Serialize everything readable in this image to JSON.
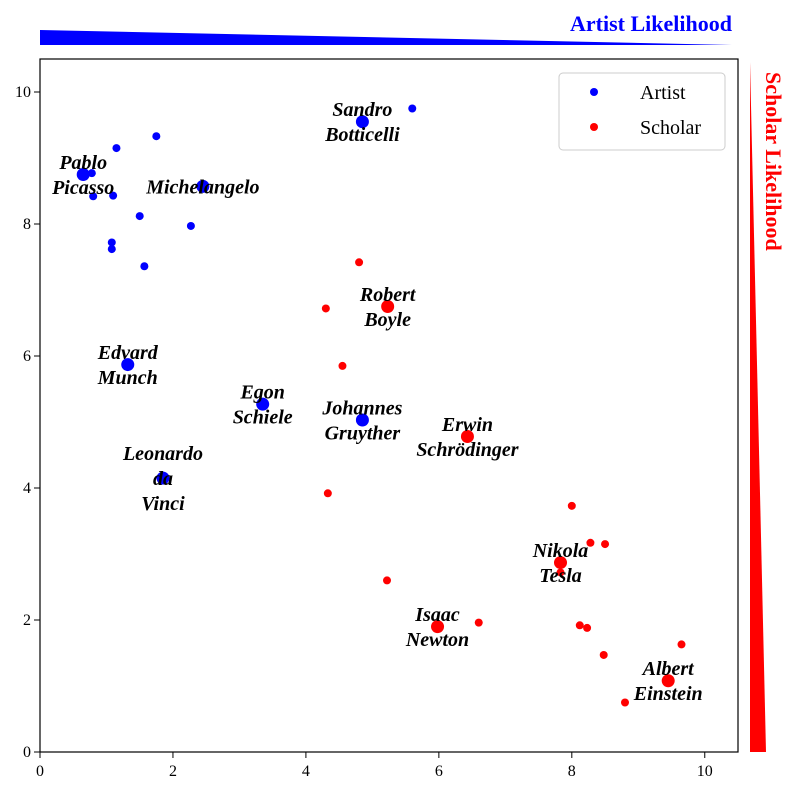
{
  "chart_data": {
    "type": "scatter",
    "xlim": [
      0,
      10.5
    ],
    "ylim": [
      0,
      10.5
    ],
    "x_ticks": [
      "0",
      "2",
      "4",
      "6",
      "8",
      "10"
    ],
    "y_ticks": [
      "0",
      "2",
      "4",
      "6",
      "8",
      "10"
    ],
    "grid": false,
    "legend_position": "top-right",
    "artist_bar_title": "Artist Likelihood",
    "scholar_bar_title": "Scholar Likelihood",
    "artist_color": "#0000ff",
    "scholar_color": "#ff0000",
    "series": [
      {
        "name": "Artist",
        "color": "#0000ff",
        "points": [
          {
            "x": 4.85,
            "y": 9.55,
            "label": "Sandro\nBotticelli",
            "major": true
          },
          {
            "x": 5.6,
            "y": 9.75
          },
          {
            "x": 0.65,
            "y": 8.75,
            "label": "Pablo\nPicasso",
            "major": true
          },
          {
            "x": 0.78,
            "y": 8.77
          },
          {
            "x": 1.15,
            "y": 9.15
          },
          {
            "x": 1.75,
            "y": 9.33
          },
          {
            "x": 0.8,
            "y": 8.42
          },
          {
            "x": 1.1,
            "y": 8.43
          },
          {
            "x": 2.45,
            "y": 8.57,
            "label": "Michelangelo",
            "major": true
          },
          {
            "x": 1.5,
            "y": 8.12
          },
          {
            "x": 2.27,
            "y": 7.97
          },
          {
            "x": 1.08,
            "y": 7.72
          },
          {
            "x": 1.08,
            "y": 7.62
          },
          {
            "x": 1.57,
            "y": 7.36
          },
          {
            "x": 1.32,
            "y": 5.87,
            "label": "Edvard\nMunch",
            "major": true
          },
          {
            "x": 3.35,
            "y": 5.27,
            "label": "Egon\nSchiele",
            "major": true
          },
          {
            "x": 4.85,
            "y": 5.03,
            "label": "Johannes\nGruyther",
            "major": true
          },
          {
            "x": 1.85,
            "y": 4.15,
            "label": "Leonardo\nda\nVinci",
            "major": true
          }
        ]
      },
      {
        "name": "Scholar",
        "color": "#ff0000",
        "points": [
          {
            "x": 4.8,
            "y": 7.42
          },
          {
            "x": 4.3,
            "y": 6.72
          },
          {
            "x": 5.23,
            "y": 6.75,
            "label": "Robert\nBoyle",
            "major": true
          },
          {
            "x": 4.55,
            "y": 5.85
          },
          {
            "x": 6.43,
            "y": 4.78,
            "label": "Erwin\nSchrödinger",
            "major": true
          },
          {
            "x": 4.33,
            "y": 3.92
          },
          {
            "x": 8.0,
            "y": 3.73
          },
          {
            "x": 8.28,
            "y": 3.17
          },
          {
            "x": 8.5,
            "y": 3.15
          },
          {
            "x": 7.83,
            "y": 2.87,
            "label": "Nikola\nTesla",
            "major": true
          },
          {
            "x": 7.83,
            "y": 2.72
          },
          {
            "x": 5.22,
            "y": 2.6
          },
          {
            "x": 6.6,
            "y": 1.96
          },
          {
            "x": 5.98,
            "y": 1.9,
            "label": "Isaac\nNewton",
            "major": true
          },
          {
            "x": 8.12,
            "y": 1.92
          },
          {
            "x": 8.23,
            "y": 1.88
          },
          {
            "x": 9.65,
            "y": 1.63
          },
          {
            "x": 8.48,
            "y": 1.47
          },
          {
            "x": 9.45,
            "y": 1.08,
            "label": "Albert\nEinstein",
            "major": true
          },
          {
            "x": 8.8,
            "y": 0.75
          }
        ]
      }
    ]
  }
}
